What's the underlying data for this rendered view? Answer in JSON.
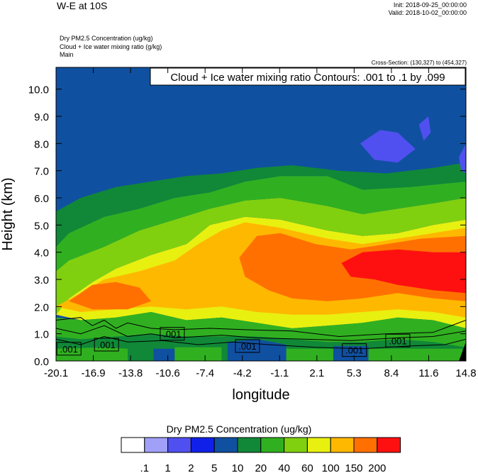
{
  "header": {
    "title": "W-E at 10S",
    "init": "Init: 2018-09-25_00:00:00",
    "valid": "Valid: 2018-10-02_00:00:00",
    "field1": "Dry PM2.5 Concentration   (ug/kg)",
    "field2": "Cloud + Ice water mixing ratio   (g/kg)",
    "field3": "Main",
    "cross_section": "Cross-Section: (130,327) to (454,327)"
  },
  "chart_data": {
    "type": "heatmap",
    "title": "",
    "contour_label": "Cloud + Ice water mixing ratio Contours: .001 to .1 by .099",
    "xlabel": "longitude",
    "ylabel": "Height (km)",
    "xticks": [
      "-20.1",
      "-16.9",
      "-13.8",
      "-10.6",
      "-7.4",
      "-4.2",
      "-1.1",
      "2.1",
      "5.3",
      "8.4",
      "11.6",
      "14.8"
    ],
    "yticks": [
      "0.0",
      "1.0",
      "2.0",
      "3.0",
      "4.0",
      "5.0",
      "6.0",
      "7.0",
      "8.0",
      "9.0",
      "10.0"
    ],
    "xlim": [
      -20.1,
      14.8
    ],
    "ylim": [
      0,
      10.8
    ],
    "colorbar": {
      "title": "Dry PM2.5 Concentration  (ug/kg)",
      "labels": [
        ".1",
        "1",
        "2",
        "5",
        "10",
        "20",
        "40",
        "60",
        "100",
        "150",
        "200"
      ],
      "colors": [
        "#ffffff",
        "#a0a0f8",
        "#5050f0",
        "#1020e8",
        "#1050a0",
        "#108838",
        "#30b020",
        "#80d010",
        "#e8f010",
        "#ffb800",
        "#ff7000",
        "#ff1010"
      ]
    },
    "contour_labels": [
      ".001",
      ".001",
      ".001",
      ".001",
      ".001",
      ".001"
    ],
    "contour_label_positions": [
      [
        -19.0,
        0.45
      ],
      [
        -15.8,
        0.6
      ],
      [
        -10.2,
        1.0
      ],
      [
        -3.8,
        0.55
      ],
      [
        5.3,
        0.4
      ],
      [
        9.0,
        0.75
      ]
    ],
    "regions": [
      {
        "level": "60",
        "pts": [
          [
            -20.1,
            1.7
          ],
          [
            -19,
            2.3
          ],
          [
            -17,
            2.9
          ],
          [
            -15,
            3.4
          ],
          [
            -12,
            3.9
          ],
          [
            -9,
            4.3
          ],
          [
            -7,
            5.0
          ],
          [
            -4,
            5.3
          ],
          [
            -1,
            5.2
          ],
          [
            3,
            4.8
          ],
          [
            6,
            4.6
          ],
          [
            9,
            4.7
          ],
          [
            12,
            5.0
          ],
          [
            14.8,
            5.2
          ],
          [
            14.8,
            1.2
          ],
          [
            12,
            1.5
          ],
          [
            9,
            1.6
          ],
          [
            6,
            1.4
          ],
          [
            3,
            1.3
          ],
          [
            0,
            1.2
          ],
          [
            -3,
            1.4
          ],
          [
            -6,
            1.6
          ],
          [
            -9,
            1.5
          ],
          [
            -12,
            1.8
          ],
          [
            -15,
            1.6
          ],
          [
            -18,
            1.5
          ]
        ]
      },
      {
        "level": "40",
        "pts": [
          [
            -20.1,
            1.6
          ],
          [
            -20.1,
            3.3
          ],
          [
            -19,
            3.7
          ],
          [
            -16,
            4.2
          ],
          [
            -13,
            4.8
          ],
          [
            -10,
            5.2
          ],
          [
            -7,
            5.6
          ],
          [
            -4,
            5.9
          ],
          [
            -1,
            6.0
          ],
          [
            3,
            5.7
          ],
          [
            6,
            5.4
          ],
          [
            9,
            5.6
          ],
          [
            12,
            5.8
          ],
          [
            14.8,
            6.0
          ],
          [
            14.8,
            5.2
          ],
          [
            12,
            5.0
          ],
          [
            9,
            4.7
          ],
          [
            6,
            4.6
          ],
          [
            3,
            4.8
          ],
          [
            -1,
            5.2
          ],
          [
            -4,
            5.3
          ],
          [
            -7,
            5.0
          ],
          [
            -9,
            4.3
          ],
          [
            -12,
            3.9
          ],
          [
            -15,
            3.4
          ],
          [
            -17,
            2.9
          ],
          [
            -19,
            2.3
          ],
          [
            -20.1,
            1.7
          ]
        ]
      },
      {
        "level": "20",
        "pts": [
          [
            -20.1,
            3.3
          ],
          [
            -20.1,
            4.2
          ],
          [
            -19,
            4.7
          ],
          [
            -16,
            5.3
          ],
          [
            -13,
            5.6
          ],
          [
            -10,
            6.0
          ],
          [
            -7,
            6.2
          ],
          [
            -4,
            6.6
          ],
          [
            -1,
            6.8
          ],
          [
            3,
            6.8
          ],
          [
            6,
            6.3
          ],
          [
            10,
            6.4
          ],
          [
            14.8,
            6.6
          ],
          [
            14.8,
            6.0
          ],
          [
            12,
            5.8
          ],
          [
            9,
            5.6
          ],
          [
            6,
            5.4
          ],
          [
            3,
            5.7
          ],
          [
            -1,
            6.0
          ],
          [
            -4,
            5.9
          ],
          [
            -7,
            5.6
          ],
          [
            -10,
            5.2
          ],
          [
            -13,
            4.8
          ],
          [
            -16,
            4.2
          ],
          [
            -19,
            3.7
          ]
        ]
      },
      {
        "level": "10",
        "pts": [
          [
            -20.1,
            4.2
          ],
          [
            -20.1,
            5.5
          ],
          [
            -18,
            6.0
          ],
          [
            -15,
            6.4
          ],
          [
            -12,
            6.6
          ],
          [
            -9,
            6.8
          ],
          [
            -6,
            6.9
          ],
          [
            -3,
            7.1
          ],
          [
            0,
            7.2
          ],
          [
            4,
            7.0
          ],
          [
            8,
            6.9
          ],
          [
            12,
            7.1
          ],
          [
            14.8,
            7.3
          ],
          [
            14.8,
            6.6
          ],
          [
            10,
            6.4
          ],
          [
            6,
            6.3
          ],
          [
            3,
            6.8
          ],
          [
            -1,
            6.8
          ],
          [
            -4,
            6.6
          ],
          [
            -7,
            6.2
          ],
          [
            -10,
            6.0
          ],
          [
            -13,
            5.6
          ],
          [
            -16,
            5.3
          ],
          [
            -19,
            4.7
          ]
        ]
      },
      {
        "level": "100",
        "pts": [
          [
            -20.1,
            2.0
          ],
          [
            -18,
            2.5
          ],
          [
            -16,
            3.0
          ],
          [
            -13,
            3.3
          ],
          [
            -10,
            3.7
          ],
          [
            -8,
            4.3
          ],
          [
            -6,
            4.8
          ],
          [
            -4,
            5.1
          ],
          [
            -1,
            4.9
          ],
          [
            3,
            4.5
          ],
          [
            6,
            4.3
          ],
          [
            9,
            4.5
          ],
          [
            12,
            4.7
          ],
          [
            14.8,
            4.9
          ],
          [
            14.8,
            1.6
          ],
          [
            12,
            1.8
          ],
          [
            9,
            1.9
          ],
          [
            6,
            1.8
          ],
          [
            3,
            1.7
          ],
          [
            0,
            1.7
          ],
          [
            -3,
            1.8
          ],
          [
            -6,
            2.0
          ],
          [
            -9,
            1.9
          ],
          [
            -12,
            2.0
          ],
          [
            -15,
            1.9
          ],
          [
            -18,
            1.8
          ]
        ]
      },
      {
        "level": "150",
        "pts": [
          [
            -19,
            2.2
          ],
          [
            -17,
            2.8
          ],
          [
            -15,
            2.9
          ],
          [
            -13,
            2.7
          ],
          [
            -12,
            2.2
          ],
          [
            -14,
            1.9
          ],
          [
            -17,
            1.9
          ]
        ]
      },
      {
        "level": "150",
        "pts": [
          [
            -4.5,
            3.8
          ],
          [
            -3,
            4.6
          ],
          [
            -1,
            4.7
          ],
          [
            2,
            4.3
          ],
          [
            5,
            4.1
          ],
          [
            8,
            4.3
          ],
          [
            11,
            4.5
          ],
          [
            14.8,
            4.6
          ],
          [
            14.8,
            2.2
          ],
          [
            12,
            2.3
          ],
          [
            9,
            2.5
          ],
          [
            6,
            2.3
          ],
          [
            3,
            2.2
          ],
          [
            0,
            2.3
          ],
          [
            -2,
            2.6
          ],
          [
            -4,
            3.1
          ]
        ]
      },
      {
        "level": "200",
        "pts": [
          [
            4.2,
            3.6
          ],
          [
            6,
            4.0
          ],
          [
            9,
            4.1
          ],
          [
            12,
            4.0
          ],
          [
            14.8,
            4.0
          ],
          [
            14.8,
            2.5
          ],
          [
            12,
            2.6
          ],
          [
            9,
            2.8
          ],
          [
            7,
            3.0
          ],
          [
            5,
            3.1
          ]
        ]
      },
      {
        "level": "20",
        "pts": [
          [
            -20.1,
            0.0
          ],
          [
            -20.1,
            1.6
          ],
          [
            -18,
            1.5
          ],
          [
            -15,
            1.6
          ],
          [
            -12,
            1.8
          ],
          [
            -9,
            1.5
          ],
          [
            -6,
            1.6
          ],
          [
            -3,
            1.4
          ],
          [
            0,
            1.2
          ],
          [
            3,
            1.3
          ],
          [
            6,
            1.4
          ],
          [
            9,
            1.6
          ],
          [
            12,
            1.5
          ],
          [
            14.8,
            1.2
          ],
          [
            14.8,
            0.0
          ]
        ]
      },
      {
        "level": "10",
        "pts": [
          [
            -20.1,
            0.0
          ],
          [
            -20.1,
            0.9
          ],
          [
            -18,
            0.8
          ],
          [
            -15,
            0.9
          ],
          [
            -12,
            1.0
          ],
          [
            -9,
            0.9
          ],
          [
            -6,
            0.9
          ],
          [
            -3,
            0.9
          ],
          [
            0,
            0.8
          ],
          [
            3,
            0.7
          ],
          [
            6,
            0.7
          ],
          [
            9,
            0.8
          ],
          [
            12,
            0.7
          ],
          [
            14.8,
            0.5
          ],
          [
            14.8,
            0.0
          ]
        ]
      },
      {
        "level": "5",
        "pts": [
          [
            -5.5,
            0.0
          ],
          [
            -5.5,
            0.7
          ],
          [
            -3,
            0.8
          ],
          [
            -0.5,
            0.6
          ],
          [
            -0.5,
            0.0
          ]
        ]
      },
      {
        "level": "5",
        "pts": [
          [
            3.5,
            0.0
          ],
          [
            3.5,
            0.55
          ],
          [
            6.5,
            0.55
          ],
          [
            6.5,
            0.0
          ]
        ]
      },
      {
        "level": "5",
        "pts": [
          [
            -11.8,
            0.0
          ],
          [
            -11.8,
            0.45
          ],
          [
            -10,
            0.45
          ],
          [
            -10,
            0.0
          ]
        ]
      },
      {
        "level": "20",
        "pts": [
          [
            -20.1,
            0.0
          ],
          [
            -20.1,
            0.45
          ],
          [
            -16,
            0.5
          ],
          [
            -14,
            0.45
          ],
          [
            -14,
            0.0
          ]
        ]
      },
      {
        "level": "20",
        "pts": [
          [
            -10,
            0.0
          ],
          [
            -10,
            0.5
          ],
          [
            -6,
            0.5
          ],
          [
            -6,
            0.0
          ]
        ]
      },
      {
        "level": "20",
        "pts": [
          [
            -0.5,
            0.0
          ],
          [
            -0.5,
            0.45
          ],
          [
            3.5,
            0.45
          ],
          [
            3.5,
            0.0
          ]
        ]
      },
      {
        "level": "20",
        "pts": [
          [
            6.5,
            0.0
          ],
          [
            6.5,
            0.45
          ],
          [
            14.5,
            0.45
          ],
          [
            14.5,
            0.0
          ]
        ]
      },
      {
        "level": "1",
        "pts": [
          [
            5.8,
            8.0
          ],
          [
            7.5,
            8.5
          ],
          [
            9,
            8.4
          ],
          [
            10.5,
            7.8
          ],
          [
            9,
            7.3
          ],
          [
            7,
            7.4
          ]
        ]
      },
      {
        "level": "1",
        "pts": [
          [
            10.8,
            8.7
          ],
          [
            11.6,
            9.0
          ],
          [
            11.8,
            8.4
          ],
          [
            11.2,
            8.1
          ]
        ]
      },
      {
        "level": "1",
        "pts": [
          [
            14.2,
            7.5
          ],
          [
            14.8,
            8.0
          ],
          [
            14.8,
            6.9
          ],
          [
            14.4,
            7.0
          ]
        ]
      }
    ]
  }
}
